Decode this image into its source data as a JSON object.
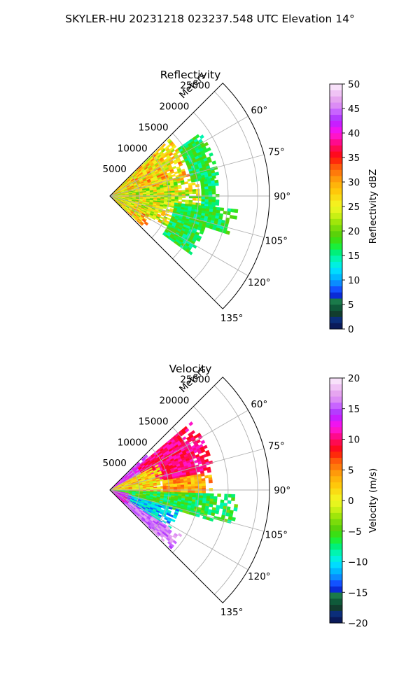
{
  "figure": {
    "title": "SKYLER-HU  20231218  023237.548 UTC Elevation 14°"
  },
  "chart_data": [
    {
      "type": "heatmap",
      "projection": "polar-sector",
      "title": "Reflectivity",
      "range_label": "Meters",
      "range_ticks": [
        5000,
        10000,
        15000,
        20000,
        25000
      ],
      "range_max": 27000,
      "azimuth_ticks": [
        "60°",
        "75°",
        "90°",
        "105°",
        "120°",
        "135°"
      ],
      "azimuth_range": [
        45,
        135
      ],
      "grid": true,
      "colorbar": {
        "label": "Reflectivity dBZ",
        "ticks": [
          "0",
          "5",
          "10",
          "15",
          "20",
          "25",
          "30",
          "35",
          "40",
          "45",
          "50"
        ],
        "range": [
          0,
          50
        ],
        "colors": [
          "#0a1a5a",
          "#0b2e7a",
          "#123d2e",
          "#0f5a3a",
          "#1a7a4a",
          "#0a2bd6",
          "#1252ff",
          "#0a8cff",
          "#00b8ff",
          "#00dcff",
          "#00f0e0",
          "#00f5b0",
          "#00f07a",
          "#1aef3a",
          "#3adf14",
          "#5ad20a",
          "#7adc0a",
          "#a0e60a",
          "#c8f014",
          "#e6f51e",
          "#f5f01e",
          "#fadc14",
          "#ffc80a",
          "#ffb40a",
          "#ff9a0a",
          "#ff7a0a",
          "#ff5a0a",
          "#ff2a0a",
          "#ff0a1e",
          "#ff0a50",
          "#ff0a8c",
          "#ff14c8",
          "#f014f0",
          "#c81eff",
          "#b43cff",
          "#c864ff",
          "#dc8cf5",
          "#e6a5f0",
          "#f0c3f5",
          "#f8e1fa"
        ]
      },
      "zones": [
        {
          "az": [
            46,
            78
          ],
          "r": [
            0,
            14000
          ],
          "level": 27,
          "spread": 6
        },
        {
          "az": [
            78,
            100
          ],
          "r": [
            0,
            15500
          ],
          "level": 24,
          "spread": 6
        },
        {
          "az": [
            100,
            118
          ],
          "r": [
            0,
            11000
          ],
          "level": 25,
          "spread": 6
        },
        {
          "az": [
            118,
            133
          ],
          "r": [
            0,
            8000
          ],
          "level": 27,
          "spread": 7
        },
        {
          "az": [
            55,
            80
          ],
          "r": [
            14000,
            18500
          ],
          "level": 17,
          "spread": 3
        },
        {
          "az": [
            80,
            96
          ],
          "r": [
            15500,
            18000
          ],
          "level": 16,
          "spread": 3
        },
        {
          "az": [
            96,
            108
          ],
          "r": [
            11000,
            21500
          ],
          "level": 17,
          "spread": 3
        },
        {
          "az": [
            108,
            125
          ],
          "r": [
            11000,
            17000
          ],
          "level": 17,
          "spread": 3
        }
      ]
    },
    {
      "type": "heatmap",
      "projection": "polar-sector",
      "title": "Velocity",
      "range_label": "Meters",
      "range_ticks": [
        5000,
        10000,
        15000,
        20000,
        25000
      ],
      "range_max": 27000,
      "azimuth_ticks": [
        "60°",
        "75°",
        "90°",
        "105°",
        "120°",
        "135°"
      ],
      "azimuth_range": [
        45,
        135
      ],
      "grid": true,
      "colorbar": {
        "label": "Velocity (m/s)",
        "ticks": [
          "−20",
          "−15",
          "−10",
          "−5",
          "0",
          "5",
          "10",
          "15",
          "20"
        ],
        "range": [
          -20,
          20
        ],
        "colors": [
          "#0a1a5a",
          "#0b2e7a",
          "#123d2e",
          "#0f5a3a",
          "#1a7a4a",
          "#0a2bd6",
          "#1252ff",
          "#0a8cff",
          "#00b8ff",
          "#00dcff",
          "#00f0e0",
          "#00f5b0",
          "#00f07a",
          "#1aef3a",
          "#3adf14",
          "#5ad20a",
          "#7adc0a",
          "#a0e60a",
          "#c8f014",
          "#e6f51e",
          "#f5f01e",
          "#fadc14",
          "#ffc80a",
          "#ffb40a",
          "#ff9a0a",
          "#ff7a0a",
          "#ff5a0a",
          "#ff2a0a",
          "#ff0a1e",
          "#ff0a50",
          "#ff0a8c",
          "#ff14c8",
          "#f014f0",
          "#c81eff",
          "#b43cff",
          "#c864ff",
          "#dc8cf5",
          "#e6a5f0",
          "#f0c3f5",
          "#f8e1fa"
        ]
      },
      "zones": [
        {
          "az": [
            46,
            62
          ],
          "r": [
            0,
            9000
          ],
          "level": 14,
          "spread": 3
        },
        {
          "az": [
            50,
            80
          ],
          "r": [
            6000,
            18000
          ],
          "level": 10,
          "spread": 2
        },
        {
          "az": [
            62,
            92
          ],
          "r": [
            0,
            9000
          ],
          "level": 2,
          "spread": 4
        },
        {
          "az": [
            80,
            95
          ],
          "r": [
            9000,
            17000
          ],
          "level": 4,
          "spread": 3
        },
        {
          "az": [
            92,
            106
          ],
          "r": [
            0,
            21500
          ],
          "level": -6,
          "spread": 3
        },
        {
          "az": [
            106,
            122
          ],
          "r": [
            0,
            12000
          ],
          "level": -11,
          "spread": 3
        },
        {
          "az": [
            122,
            134
          ],
          "r": [
            3000,
            14500
          ],
          "level": 16,
          "spread": 2
        },
        {
          "az": [
            100,
            134
          ],
          "r": [
            0,
            3500
          ],
          "level": 13,
          "spread": 3
        }
      ]
    }
  ]
}
